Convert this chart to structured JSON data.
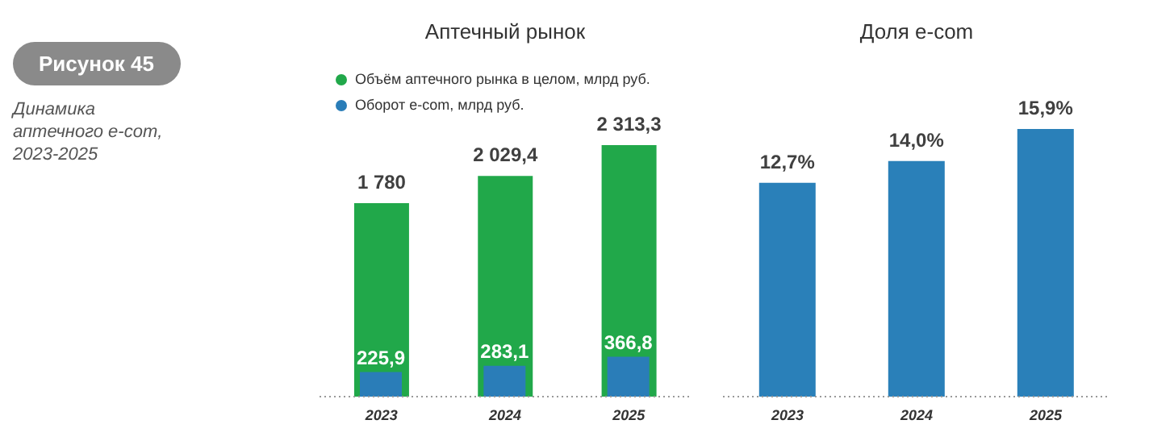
{
  "chart_data": [
    {
      "type": "bar",
      "title": "Аптечный рынок",
      "annotations": [
        "Рисунок 45",
        "Динамика аптечного e-com, 2023-2025"
      ],
      "categories": [
        "2023",
        "2024",
        "2025"
      ],
      "legend": "top left",
      "series": [
        {
          "name": "Объём аптечного рынка в целом, млрд руб.",
          "color": "#21a84a",
          "values": [
            1780,
            2029.4,
            2313.3
          ],
          "value_labels": [
            "1 780",
            "2 029,4",
            "2 313,3"
          ]
        },
        {
          "name": "Оборот e-com, млрд руб.",
          "color": "#2a7db8",
          "values": [
            225.9,
            283.1,
            366.8
          ],
          "value_labels": [
            "225,9",
            "283,1",
            "366,8"
          ]
        }
      ]
    },
    {
      "type": "bar",
      "title": "Доля e-com",
      "categories": [
        "2023",
        "2024",
        "2025"
      ],
      "series": [
        {
          "color": "#2a80b9",
          "values": [
            12.7,
            14.0,
            15.9
          ],
          "value_labels": [
            "12,7%",
            "14,0%",
            "15,9%"
          ]
        }
      ]
    }
  ]
}
